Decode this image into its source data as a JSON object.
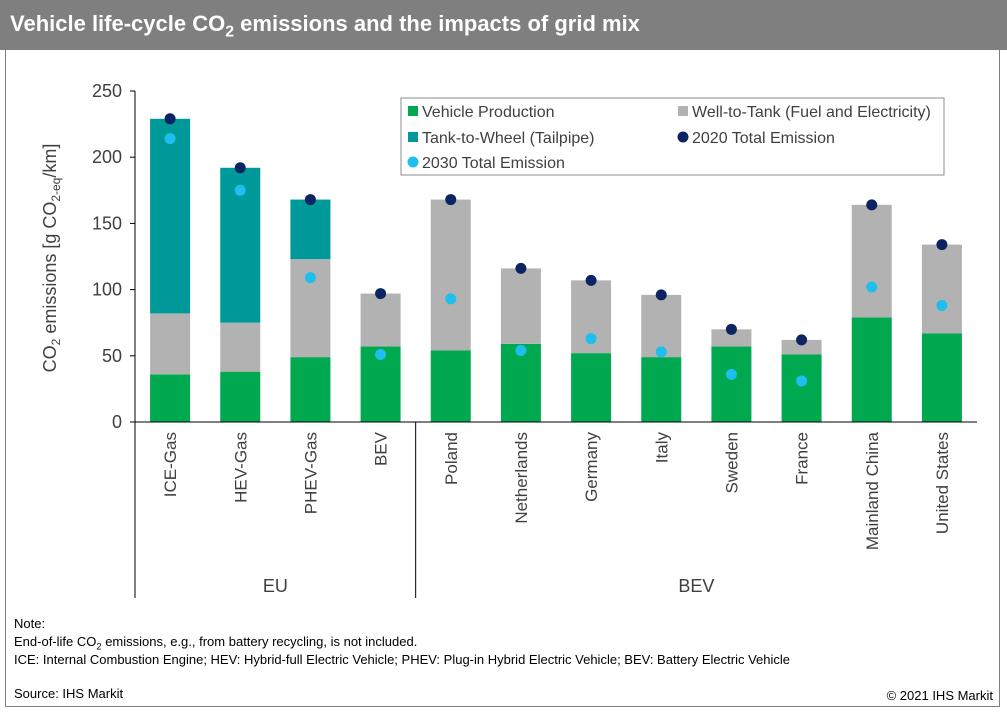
{
  "title": {
    "pre": "Vehicle life-cycle CO",
    "sub": "2",
    "post": " emissions and the impacts of grid mix"
  },
  "footer": {
    "note_label": "Note:",
    "note_line1_pre": "End-of-life CO",
    "note_line1_sub": "2",
    "note_line1_post": " emissions, e.g., from battery recycling, is not included.",
    "note_line2": "ICE: Internal Combustion Engine; HEV: Hybrid-full Electric Vehicle; PHEV: Plug-in Hybrid Electric Vehicle; BEV: Battery Electric Vehicle",
    "source": "Source: IHS Markit",
    "copyright": "© 2021 IHS Markit"
  },
  "colors": {
    "vehicle_production": "#00a84f",
    "well_to_tank": "#b2b2b2",
    "tank_to_wheel": "#00999a",
    "total_2020": "#0c2461",
    "total_2030": "#1ebfee"
  },
  "chart_data": {
    "type": "bar",
    "stacked": true,
    "ylabel": {
      "pre": "CO",
      "sub1": "2",
      "mid": " emissions [g CO",
      "sub2": "2-eq",
      "post": "/km]"
    },
    "ylim": [
      0,
      250
    ],
    "yticks": [
      0,
      50,
      100,
      150,
      200,
      250
    ],
    "grid": false,
    "legend_position": "top-right",
    "categories": [
      "ICE-Gas",
      "HEV-Gas",
      "PHEV-Gas",
      "BEV",
      "Poland",
      "Netherlands",
      "Germany",
      "Italy",
      "Sweden",
      "France",
      "Mainland China",
      "United States"
    ],
    "groups": [
      {
        "label": "EU",
        "count": 4
      },
      {
        "label": "BEV",
        "count": 8
      }
    ],
    "series": [
      {
        "name": "Vehicle Production",
        "kind": "bar",
        "values": [
          36,
          38,
          49,
          57,
          54,
          59,
          52,
          49,
          57,
          51,
          79,
          67
        ]
      },
      {
        "name": "Well-to-Tank (Fuel and Electricity)",
        "kind": "bar",
        "values": [
          46,
          37,
          74,
          40,
          114,
          57,
          55,
          47,
          13,
          11,
          85,
          67
        ]
      },
      {
        "name": "Tank-to-Wheel (Tailpipe)",
        "kind": "bar",
        "values": [
          147,
          117,
          45,
          0,
          0,
          0,
          0,
          0,
          0,
          0,
          0,
          0
        ]
      },
      {
        "name": "2020 Total Emission",
        "kind": "dot",
        "values": [
          229,
          192,
          168,
          97,
          168,
          116,
          107,
          96,
          70,
          62,
          164,
          134
        ]
      },
      {
        "name": "2030 Total Emission",
        "kind": "dot",
        "values": [
          214,
          175,
          109,
          51,
          93,
          54,
          63,
          53,
          36,
          31,
          102,
          88
        ]
      }
    ]
  }
}
